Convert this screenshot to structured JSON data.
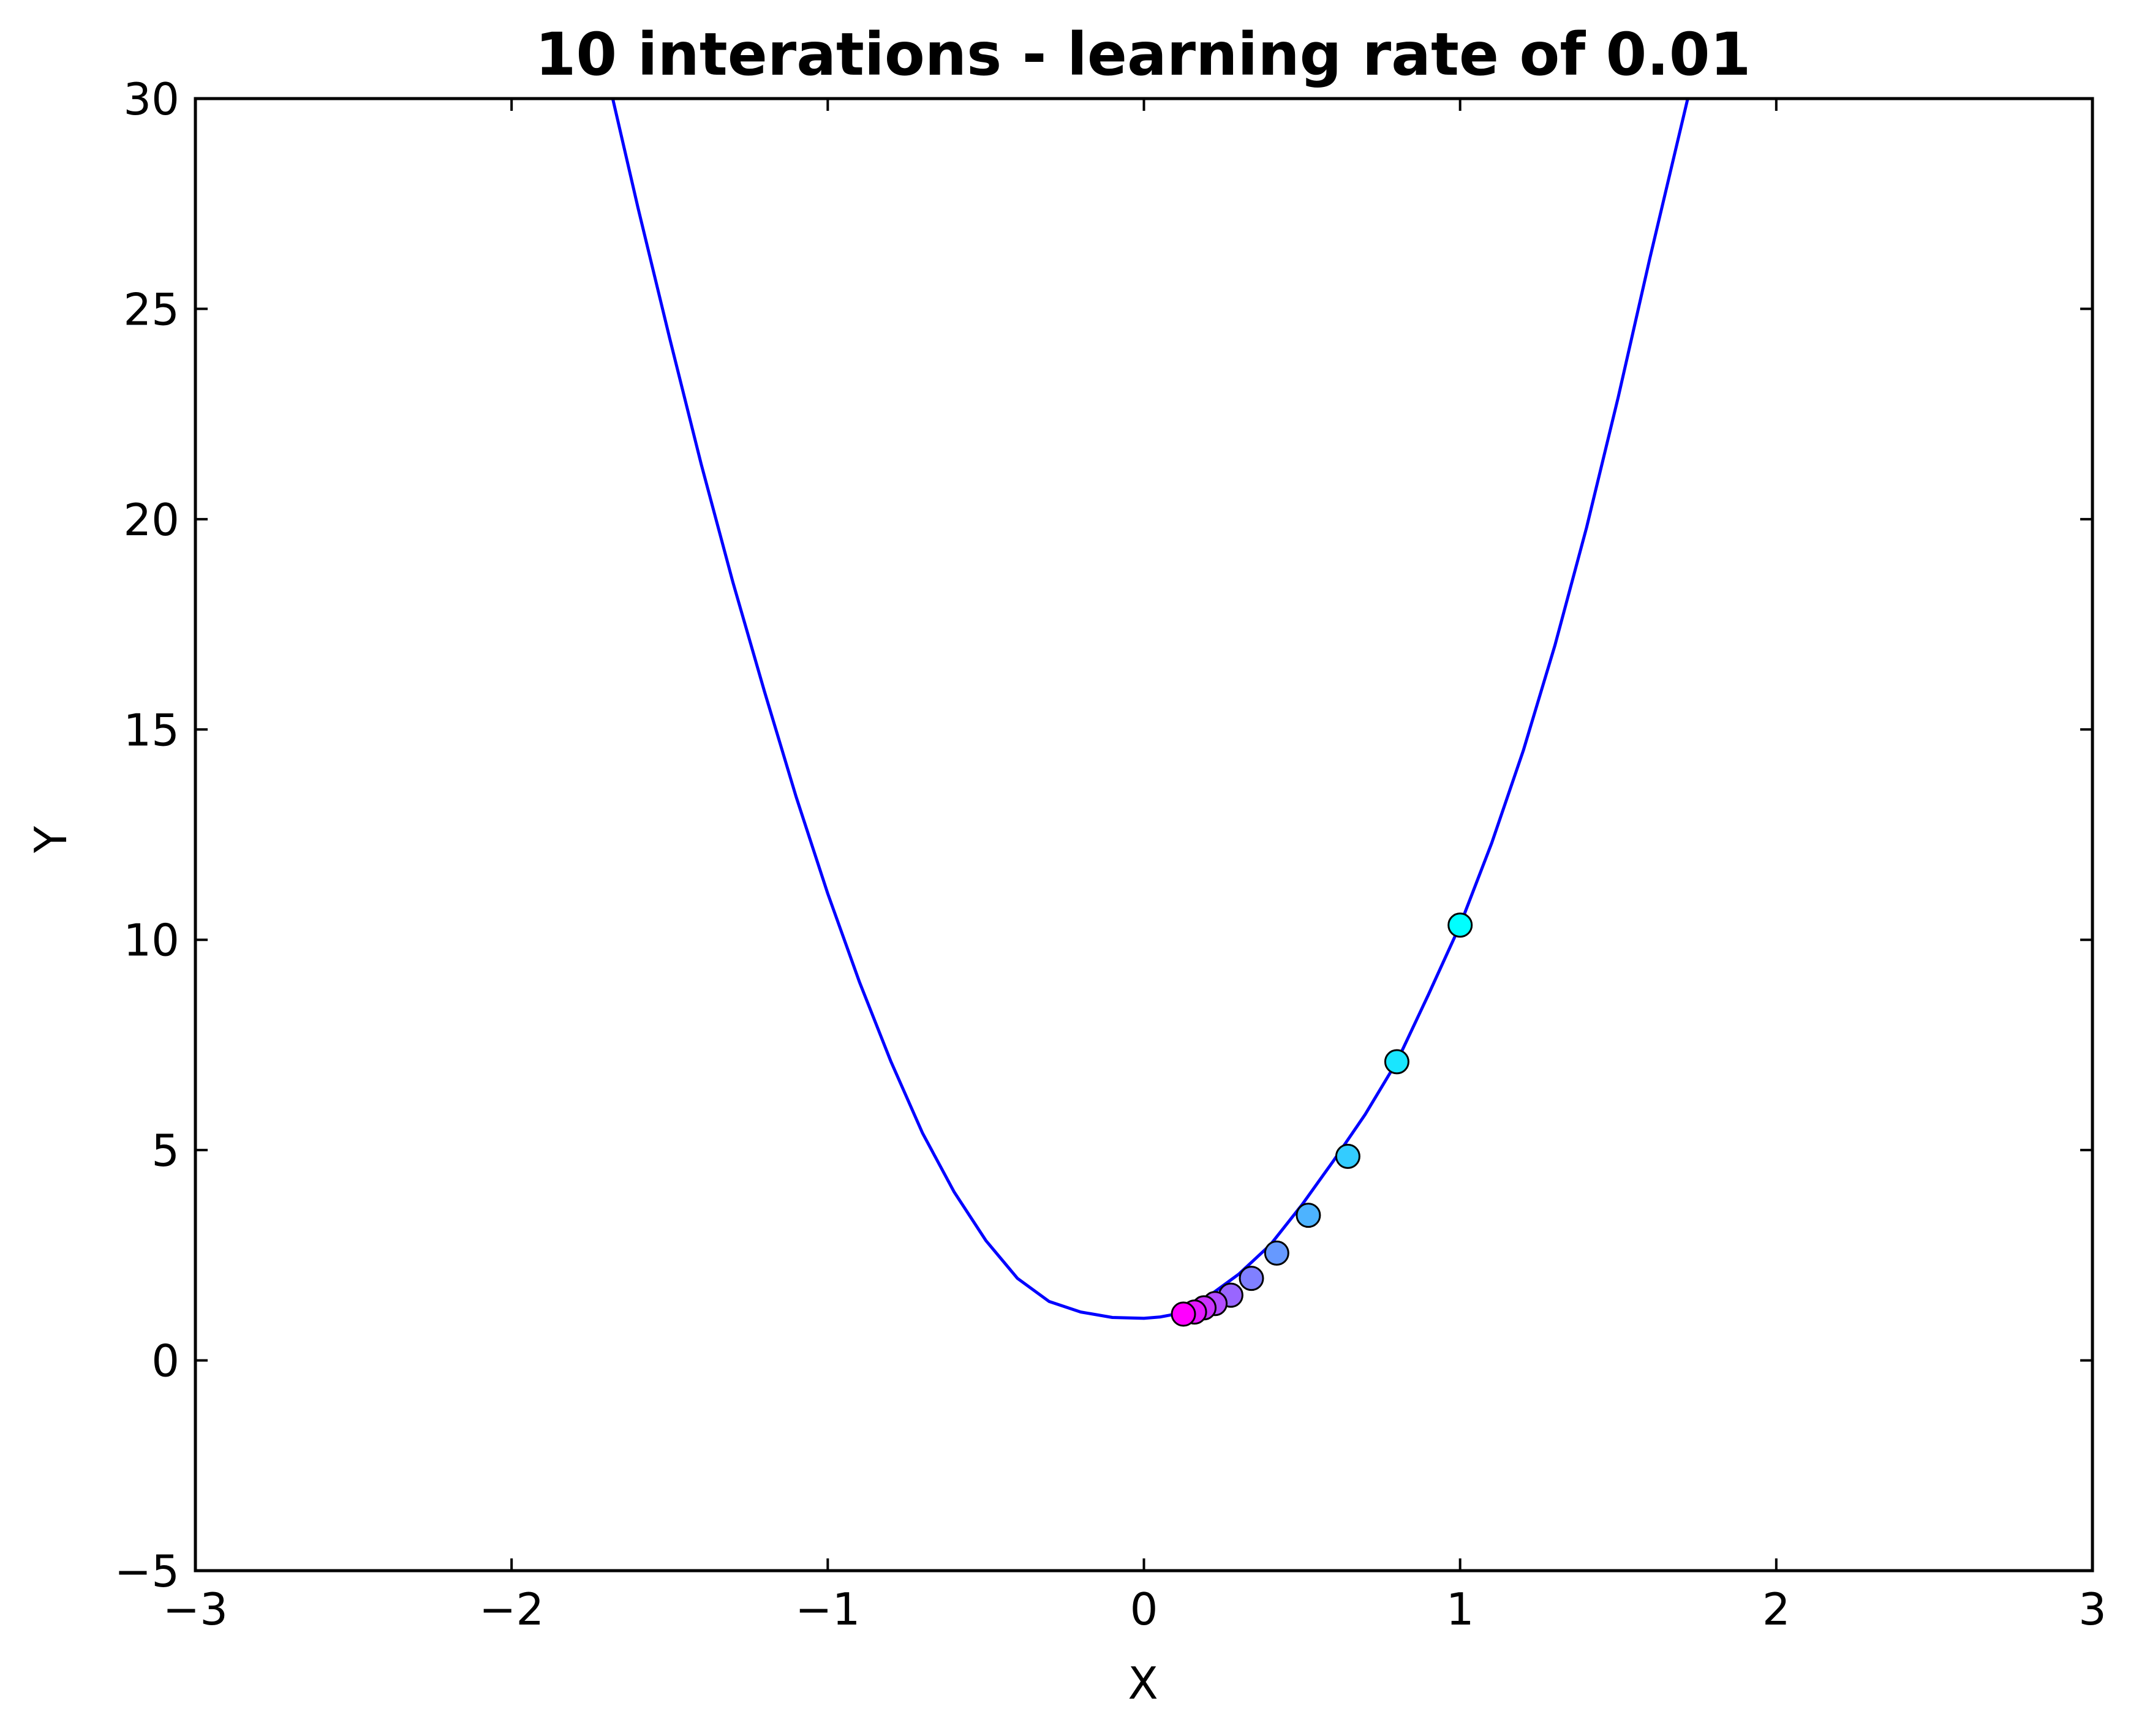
{
  "chart_data": {
    "type": "line",
    "title": "10 interations - learning rate of 0.01",
    "xlabel": "X",
    "ylabel": "Y",
    "xlim": [
      -3,
      3
    ],
    "ylim": [
      -5,
      30
    ],
    "xticks": [
      -3,
      -2,
      -1,
      0,
      1,
      2,
      3
    ],
    "yticks": [
      -5,
      0,
      5,
      10,
      15,
      20,
      25,
      30
    ],
    "xtick_labels": [
      "−3",
      "−2",
      "−1",
      "0",
      "1",
      "2",
      "3"
    ],
    "ytick_labels": [
      "−5",
      "0",
      "5",
      "10",
      "15",
      "20",
      "25",
      "30"
    ],
    "grid": false,
    "legend": "none",
    "line_color": "#0000ff",
    "curve": {
      "x": [
        -1.68,
        -1.6,
        -1.5,
        -1.4,
        -1.3,
        -1.2,
        -1.1,
        -1.0,
        -0.9,
        -0.8,
        -0.7,
        -0.6,
        -0.5,
        -0.4,
        -0.3,
        -0.2,
        -0.1,
        0.0,
        0.05,
        0.1,
        0.2,
        0.3,
        0.4,
        0.5,
        0.6,
        0.7,
        0.8,
        0.9,
        1.0,
        1.1,
        1.2,
        1.3,
        1.4,
        1.5,
        1.6,
        1.72
      ],
      "y": [
        30.0,
        27.4,
        24.3,
        21.3,
        18.5,
        15.9,
        13.4,
        11.1,
        9.0,
        7.1,
        5.4,
        4.0,
        2.85,
        1.95,
        1.4,
        1.15,
        1.02,
        1.0,
        1.03,
        1.1,
        1.5,
        2.05,
        2.75,
        3.7,
        4.75,
        5.85,
        7.1,
        8.7,
        10.35,
        12.3,
        14.5,
        17.0,
        19.8,
        22.9,
        26.2,
        30.0
      ]
    },
    "points": {
      "x": [
        1.0,
        0.8,
        0.645,
        0.52,
        0.42,
        0.34,
        0.275,
        0.225,
        0.19,
        0.16,
        0.125
      ],
      "y": [
        10.35,
        7.1,
        4.85,
        3.45,
        2.55,
        1.95,
        1.55,
        1.35,
        1.25,
        1.15,
        1.1
      ],
      "colors": [
        "#00ffff",
        "#19e6ff",
        "#33ccff",
        "#4db3ff",
        "#6699ff",
        "#8080ff",
        "#9966ff",
        "#b34dff",
        "#cc33ff",
        "#e619ff",
        "#ff00ff"
      ]
    }
  }
}
